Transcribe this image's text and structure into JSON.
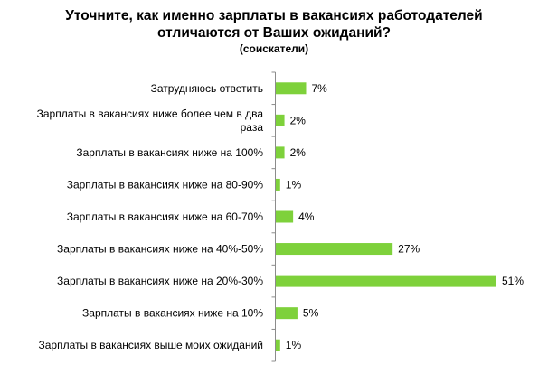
{
  "chart_data": {
    "type": "bar",
    "orientation": "horizontal",
    "title_lines": [
      "Уточните, как именно зарплаты в вакансиях работодателей",
      "отличаются от Ваших ожиданий?"
    ],
    "subtitle": "(соискатели)",
    "categories": [
      [
        "Затрудняюсь ответить"
      ],
      [
        "Зарплаты  в вакансиях ниже более  чем в два",
        "раза"
      ],
      [
        "Зарплаты  в вакансиях ниже на 100%"
      ],
      [
        "Зарплаты  в вакансиях ниже на 80-90%"
      ],
      [
        "Зарплаты  в вакансиях ниже на 60-70%"
      ],
      [
        "Зарплаты  в вакансиях ниже на 40%-50%"
      ],
      [
        "Зарплаты  в вакансиях ниже на 20%-30%"
      ],
      [
        "Зарплаты  в вакансиях ниже на 10%"
      ],
      [
        "Зарплаты  в вакансиях выше моих ожиданий"
      ]
    ],
    "values": [
      7,
      2,
      2,
      1,
      4,
      27,
      51,
      5,
      1
    ],
    "value_labels": [
      "7%",
      "2%",
      "2%",
      "1%",
      "4%",
      "27%",
      "51%",
      "5%",
      "1%"
    ],
    "unit": "%",
    "bar_color": "#7ED13B",
    "axis_color": "#8c8c8c",
    "grid": false,
    "legend": "none"
  }
}
